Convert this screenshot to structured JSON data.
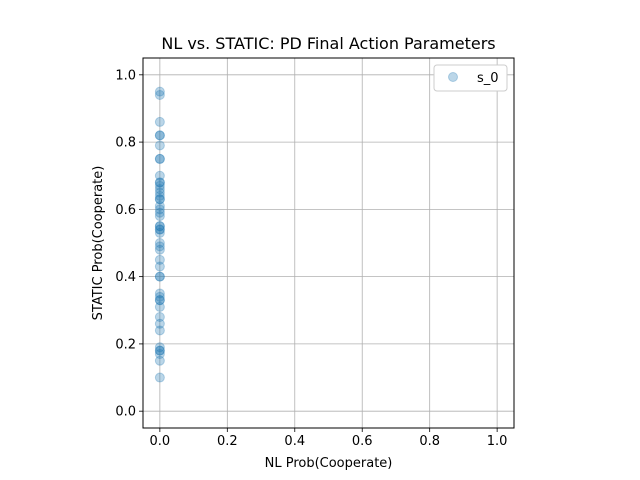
{
  "chart_data": {
    "type": "scatter",
    "title": "NL vs. STATIC: PD Final Action Parameters",
    "xlabel": "NL Prob(Cooperate)",
    "ylabel": "STATIC Prob(Cooperate)",
    "xlim": [
      -0.05,
      1.05
    ],
    "ylim": [
      -0.05,
      1.05
    ],
    "xticks": [
      0.0,
      0.2,
      0.4,
      0.6,
      0.8,
      1.0
    ],
    "yticks": [
      0.0,
      0.2,
      0.4,
      0.6,
      0.8,
      1.0
    ],
    "tick_labels_x": [
      "0.0",
      "0.2",
      "0.4",
      "0.6",
      "0.8",
      "1.0"
    ],
    "tick_labels_y": [
      "0.0",
      "0.2",
      "0.4",
      "0.6",
      "0.8",
      "1.0"
    ],
    "grid": true,
    "legend_position": "top-right",
    "series": [
      {
        "name": "s_0",
        "color": "#1f77b4",
        "alpha": 0.3,
        "x": [
          0,
          0,
          0,
          0,
          0,
          0,
          0,
          0,
          0,
          0,
          0,
          0,
          0,
          0,
          0,
          0,
          0,
          0,
          0,
          0,
          0,
          0,
          0,
          0,
          0,
          0,
          0,
          0,
          0,
          0,
          0,
          0,
          0,
          0,
          0,
          0,
          0,
          0,
          0,
          0,
          0,
          0,
          0,
          0,
          0,
          0,
          0
        ],
        "y": [
          0.95,
          0.94,
          0.86,
          0.82,
          0.82,
          0.79,
          0.75,
          0.75,
          0.7,
          0.68,
          0.67,
          0.66,
          0.64,
          0.63,
          0.63,
          0.61,
          0.6,
          0.59,
          0.58,
          0.55,
          0.54,
          0.54,
          0.53,
          0.5,
          0.49,
          0.48,
          0.45,
          0.43,
          0.4,
          0.4,
          0.35,
          0.34,
          0.33,
          0.33,
          0.31,
          0.28,
          0.26,
          0.24,
          0.19,
          0.18,
          0.18,
          0.17,
          0.15,
          0.1,
          0.65,
          0.68,
          0.55
        ]
      }
    ]
  }
}
